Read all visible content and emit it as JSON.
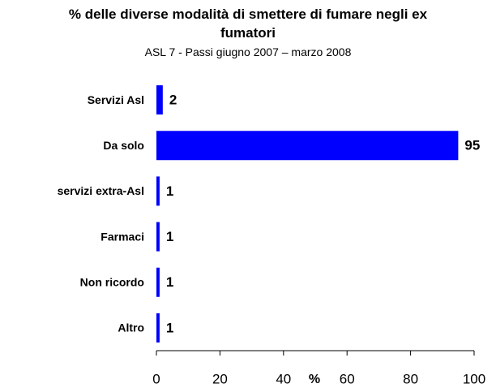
{
  "chart_data": {
    "type": "bar",
    "orientation": "horizontal",
    "title": "% delle diverse modalità di smettere di fumare negli ex fumatori",
    "subtitle": "ASL 7 - Passi giugno 2007 – marzo 2008",
    "x_label": "%",
    "categories": [
      "Servizi Asl",
      "Da solo",
      "servizi extra-Asl",
      "Farmaci",
      "Non ricordo",
      "Altro"
    ],
    "values": [
      2,
      95,
      1,
      1,
      1,
      1
    ],
    "color": "#0000ff",
    "xlim": [
      0,
      100
    ],
    "xticks": [
      0,
      20,
      40,
      60,
      80,
      100
    ],
    "grid": false
  }
}
